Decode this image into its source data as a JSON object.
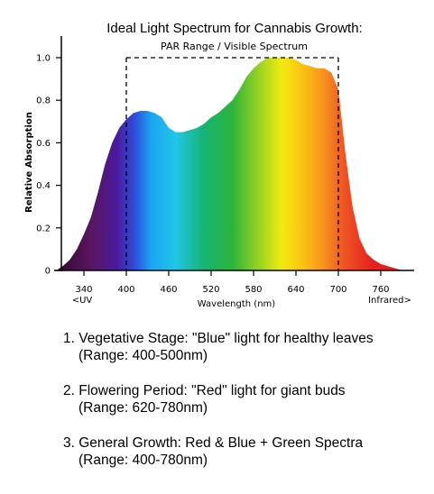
{
  "chart_data": {
    "type": "area",
    "title": "Ideal Light Spectrum for Cannabis Growth:",
    "xlabel": "Wavelength (nm)",
    "ylabel": "Relative Absorption",
    "xlim": [
      300,
      790
    ],
    "ylim": [
      0,
      1.05
    ],
    "x_ticks": [
      {
        "value": 340,
        "label": "340",
        "sublabel": "<UV"
      },
      {
        "value": 400,
        "label": "400",
        "sublabel": ""
      },
      {
        "value": 460,
        "label": "460",
        "sublabel": ""
      },
      {
        "value": 520,
        "label": "520",
        "sublabel": ""
      },
      {
        "value": 580,
        "label": "580",
        "sublabel": ""
      },
      {
        "value": 640,
        "label": "640",
        "sublabel": ""
      },
      {
        "value": 700,
        "label": "700",
        "sublabel": ""
      },
      {
        "value": 760,
        "label": "760",
        "sublabel": "Infrared>"
      }
    ],
    "y_ticks": [
      {
        "value": 0,
        "label": "0"
      },
      {
        "value": 0.2,
        "label": "0.2"
      },
      {
        "value": 0.4,
        "label": "0.4"
      },
      {
        "value": 0.6,
        "label": "0.6"
      },
      {
        "value": 0.8,
        "label": "0.8"
      },
      {
        "value": 1.0,
        "label": "1.0"
      }
    ],
    "series": [
      {
        "x": [
          301,
          310,
          320,
          330,
          340,
          350,
          360,
          370,
          380,
          390,
          400,
          410,
          420,
          430,
          440,
          450,
          460,
          470,
          480,
          490,
          500,
          510,
          520,
          530,
          540,
          550,
          560,
          570,
          580,
          590,
          600,
          610,
          620,
          630,
          640,
          650,
          660,
          670,
          680,
          690,
          700,
          710,
          720,
          730,
          740,
          750,
          760,
          770,
          780,
          790
        ],
        "y": [
          0.0,
          0.02,
          0.05,
          0.1,
          0.17,
          0.25,
          0.37,
          0.5,
          0.6,
          0.67,
          0.71,
          0.74,
          0.75,
          0.75,
          0.74,
          0.72,
          0.67,
          0.65,
          0.65,
          0.66,
          0.67,
          0.69,
          0.72,
          0.74,
          0.77,
          0.8,
          0.85,
          0.91,
          0.95,
          0.98,
          1.0,
          1.0,
          1.0,
          1.0,
          0.99,
          0.97,
          0.96,
          0.95,
          0.95,
          0.93,
          0.85,
          0.55,
          0.3,
          0.15,
          0.08,
          0.05,
          0.03,
          0.02,
          0.01,
          0.0
        ]
      }
    ],
    "annotations": [
      {
        "type": "bracket",
        "x_start": 400,
        "x_end": 700,
        "y": 1.0,
        "text": "PAR Range / Visible Spectrum"
      }
    ],
    "grid": false
  },
  "notes": [
    {
      "line": "1. Vegetative Stage: \"Blue\" light for healthy leaves",
      "range": "(Range: 400-500nm)"
    },
    {
      "line": "2. Flowering Period: \"Red\" light for giant buds",
      "range": "(Range: 620-780nm)"
    },
    {
      "line": "3. General Growth: Red & Blue + Green Spectra",
      "range": "(Range: 400-780nm)"
    }
  ]
}
